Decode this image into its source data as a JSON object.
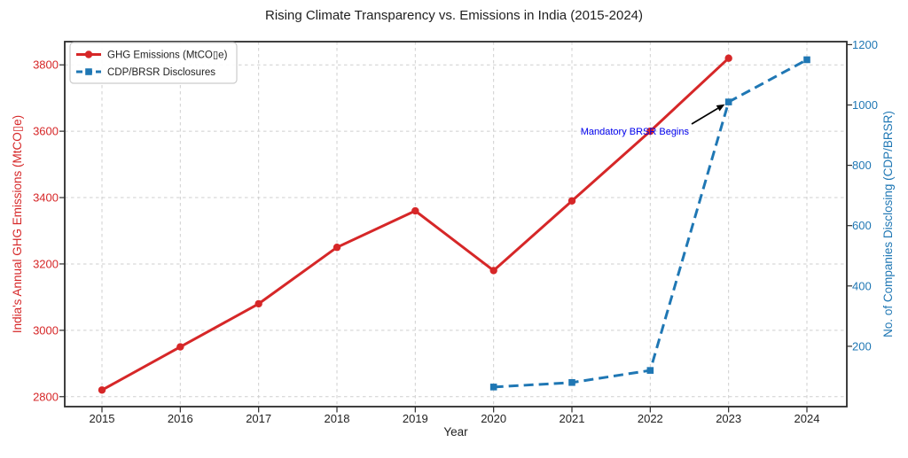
{
  "title": "Rising Climate Transparency vs. Emissions in India (2015-2024)",
  "chart_data": {
    "type": "line",
    "title": "Rising Climate Transparency vs. Emissions in India (2015-2024)",
    "xlabel": "Year",
    "x_ticks": [
      2015,
      2016,
      2017,
      2018,
      2019,
      2020,
      2021,
      2022,
      2023,
      2024
    ],
    "grid": true,
    "legend_position": "upper-left",
    "left_axis": {
      "label": "India's Annual GHG Emissions (MtCO▯e)",
      "color": "#d62728",
      "ticks": [
        2800,
        3000,
        3200,
        3400,
        3600,
        3800
      ],
      "range": [
        2770,
        3870
      ]
    },
    "right_axis": {
      "label": "No. of Companies Disclosing (CDP/BRSR)",
      "color": "#1f77b4",
      "ticks": [
        200,
        400,
        600,
        800,
        1000,
        1200
      ],
      "range": [
        0,
        1210
      ]
    },
    "series": [
      {
        "name": "GHG Emissions (MtCO▯e)",
        "axis": "left",
        "color": "#d62728",
        "line_style": "solid",
        "marker": "circle",
        "x": [
          2015,
          2016,
          2017,
          2018,
          2019,
          2020,
          2021,
          2022,
          2023
        ],
        "values": [
          2820,
          2950,
          3080,
          3250,
          3360,
          3180,
          3390,
          3600,
          3820
        ]
      },
      {
        "name": "CDP/BRSR Disclosures",
        "axis": "right",
        "color": "#1f77b4",
        "line_style": "dashed",
        "marker": "square",
        "x": [
          2020,
          2021,
          2022,
          2023,
          2024
        ],
        "values": [
          65,
          80,
          120,
          1010,
          1150
        ]
      }
    ],
    "annotation": {
      "text": "Mandatory BRSR Begins",
      "color": "#0000ee",
      "arrow_color": "#000000",
      "target": {
        "year": 2023,
        "value": 1010,
        "axis": "right"
      }
    }
  }
}
